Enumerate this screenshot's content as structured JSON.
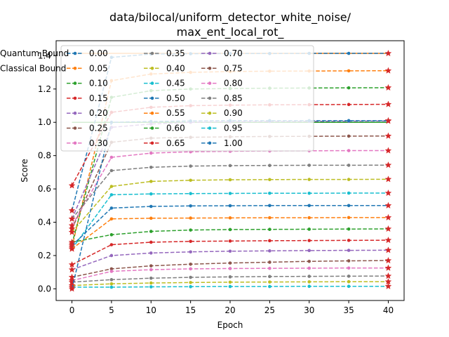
{
  "chart_data": {
    "type": "line",
    "title_line1": "data/bilocal/uniform_detector_white_noise/",
    "title_line2": "max_ent_local_rot_",
    "xlabel": "Epoch",
    "ylabel": "Score",
    "xlim": [
      -2,
      42
    ],
    "ylim": [
      -0.07,
      1.49
    ],
    "xticks": [
      0,
      5,
      10,
      15,
      20,
      25,
      30,
      35,
      40
    ],
    "yticks": [
      0.0,
      0.2,
      0.4,
      0.6,
      0.8,
      1.0,
      1.2,
      1.4
    ],
    "ytick_labels": [
      "0.0",
      "0.2",
      "0.4",
      "0.6",
      "0.8",
      "1.0",
      "1.2",
      "1.4"
    ],
    "x": [
      0,
      5,
      10,
      15,
      20,
      25,
      30,
      35,
      40
    ],
    "legend_placement": "top-left",
    "series": [
      {
        "name": "0.00",
        "color": "#1f77b4",
        "values": [
          0.47,
          1.39,
          1.41,
          1.412,
          1.413,
          1.413,
          1.414,
          1.414,
          1.414
        ]
      },
      {
        "name": "0.05",
        "color": "#ff7f0e",
        "values": [
          0.25,
          1.25,
          1.29,
          1.3,
          1.305,
          1.307,
          1.308,
          1.309,
          1.31
        ]
      },
      {
        "name": "0.10",
        "color": "#2ca02c",
        "values": [
          0.27,
          1.15,
          1.19,
          1.2,
          1.203,
          1.205,
          1.206,
          1.207,
          1.208
        ]
      },
      {
        "name": "0.15",
        "color": "#d62728",
        "values": [
          0.62,
          1.06,
          1.09,
          1.1,
          1.103,
          1.105,
          1.106,
          1.107,
          1.108
        ]
      },
      {
        "name": "0.20",
        "color": "#9467bd",
        "values": [
          0.42,
          0.97,
          0.99,
          1.0,
          1.003,
          1.005,
          1.006,
          1.007,
          1.008
        ]
      },
      {
        "name": "0.25",
        "color": "#8c564b",
        "values": [
          0.36,
          0.88,
          0.905,
          0.91,
          0.913,
          0.915,
          0.916,
          0.917,
          0.918
        ]
      },
      {
        "name": "0.30",
        "color": "#e377c2",
        "values": [
          0.38,
          0.79,
          0.815,
          0.823,
          0.826,
          0.828,
          0.829,
          0.83,
          0.83
        ]
      },
      {
        "name": "0.35",
        "color": "#7f7f7f",
        "values": [
          0.42,
          0.71,
          0.73,
          0.737,
          0.74,
          0.741,
          0.742,
          0.742,
          0.743
        ]
      },
      {
        "name": "0.40",
        "color": "#bcbd22",
        "values": [
          0.34,
          0.615,
          0.645,
          0.652,
          0.655,
          0.656,
          0.657,
          0.657,
          0.658
        ]
      },
      {
        "name": "0.45",
        "color": "#17becf",
        "values": [
          0.24,
          0.565,
          0.57,
          0.572,
          0.573,
          0.574,
          0.574,
          0.575,
          0.575
        ]
      },
      {
        "name": "0.50",
        "color": "#1f77b4",
        "values": [
          0.26,
          0.485,
          0.495,
          0.498,
          0.499,
          0.5,
          0.5,
          0.5,
          0.5
        ]
      },
      {
        "name": "0.55",
        "color": "#ff7f0e",
        "values": [
          0.24,
          0.42,
          0.424,
          0.425,
          0.426,
          0.427,
          0.427,
          0.428,
          0.428
        ]
      },
      {
        "name": "0.60",
        "color": "#2ca02c",
        "values": [
          0.28,
          0.325,
          0.345,
          0.353,
          0.356,
          0.357,
          0.358,
          0.359,
          0.36
        ]
      },
      {
        "name": "0.65",
        "color": "#d62728",
        "values": [
          0.145,
          0.265,
          0.28,
          0.285,
          0.287,
          0.289,
          0.29,
          0.291,
          0.292
        ]
      },
      {
        "name": "0.70",
        "color": "#9467bd",
        "values": [
          0.115,
          0.2,
          0.215,
          0.222,
          0.226,
          0.228,
          0.23,
          0.231,
          0.232
        ]
      },
      {
        "name": "0.75",
        "color": "#8c564b",
        "values": [
          0.07,
          0.12,
          0.138,
          0.148,
          0.155,
          0.16,
          0.165,
          0.168,
          0.17
        ]
      },
      {
        "name": "0.80",
        "color": "#e377c2",
        "values": [
          0.05,
          0.105,
          0.115,
          0.12,
          0.122,
          0.123,
          0.124,
          0.125,
          0.125
        ]
      },
      {
        "name": "0.85",
        "color": "#7f7f7f",
        "values": [
          0.04,
          0.055,
          0.064,
          0.069,
          0.072,
          0.074,
          0.075,
          0.076,
          0.077
        ]
      },
      {
        "name": "0.90",
        "color": "#bcbd22",
        "values": [
          0.02,
          0.03,
          0.035,
          0.038,
          0.04,
          0.041,
          0.042,
          0.043,
          0.043
        ]
      },
      {
        "name": "0.95",
        "color": "#17becf",
        "values": [
          0.01,
          0.01,
          0.012,
          0.013,
          0.014,
          0.014,
          0.015,
          0.015,
          0.015
        ]
      },
      {
        "name": "1.00",
        "color": "#1f77b4",
        "values": [
          0.0,
          1.0,
          1.005,
          1.008,
          1.01,
          1.01,
          1.01,
          1.01,
          1.01
        ]
      }
    ],
    "bounds": [
      {
        "name": "Quantum Bound",
        "color": "#ff7f0e",
        "value": 1.414
      },
      {
        "name": "Classical Bound",
        "color": "#2ca02c",
        "value": 1.0
      }
    ]
  }
}
